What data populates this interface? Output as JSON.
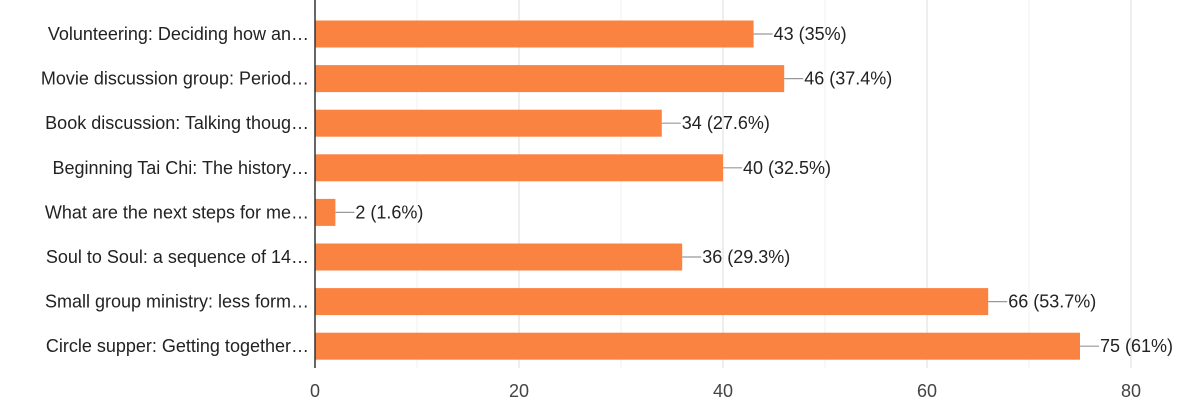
{
  "chart_data": {
    "type": "bar",
    "orientation": "horizontal",
    "categories": [
      "Volunteering: Deciding how an…",
      "Movie discussion group: Period…",
      "Book discussion: Talking thoug…",
      "Beginning Tai Chi: The history…",
      "What are the next steps for me…",
      "Soul to Soul: a sequence of 14…",
      "Small group ministry: less form…",
      "Circle supper: Getting together…"
    ],
    "values": [
      43,
      46,
      34,
      40,
      2,
      36,
      66,
      75
    ],
    "data_labels": [
      "43 (35%)",
      "46 (37.4%)",
      "34 (27.6%)",
      "40 (32.5%)",
      "2 (1.6%)",
      "36 (29.3%)",
      "66 (53.7%)",
      "75 (61%)"
    ],
    "xlim": [
      0,
      80
    ],
    "xticks": [
      0,
      20,
      40,
      60,
      80
    ],
    "grid": true,
    "bar_color": "#fb8341",
    "title": "",
    "xlabel": "",
    "ylabel": ""
  }
}
